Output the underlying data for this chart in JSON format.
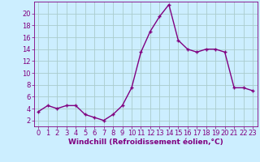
{
  "x": [
    0,
    1,
    2,
    3,
    4,
    5,
    6,
    7,
    8,
    9,
    10,
    11,
    12,
    13,
    14,
    15,
    16,
    17,
    18,
    19,
    20,
    21,
    22,
    23
  ],
  "y": [
    3.5,
    4.5,
    4.0,
    4.5,
    4.5,
    3.0,
    2.5,
    2.0,
    3.0,
    4.5,
    7.5,
    13.5,
    17.0,
    19.5,
    21.5,
    15.5,
    14.0,
    13.5,
    14.0,
    14.0,
    13.5,
    7.5,
    7.5,
    7.0
  ],
  "line_color": "#800080",
  "marker_color": "#800080",
  "bg_color": "#cceeff",
  "grid_color": "#aacccc",
  "xlabel": "Windchill (Refroidissement éolien,°C)",
  "xlim_min": -0.5,
  "xlim_max": 23.5,
  "ylim_min": 1,
  "ylim_max": 22,
  "yticks": [
    2,
    4,
    6,
    8,
    10,
    12,
    14,
    16,
    18,
    20
  ],
  "xticks": [
    0,
    1,
    2,
    3,
    4,
    5,
    6,
    7,
    8,
    9,
    10,
    11,
    12,
    13,
    14,
    15,
    16,
    17,
    18,
    19,
    20,
    21,
    22,
    23
  ],
  "xlabel_fontsize": 6.5,
  "tick_fontsize": 6,
  "marker_size": 2.5,
  "line_width": 1.0
}
